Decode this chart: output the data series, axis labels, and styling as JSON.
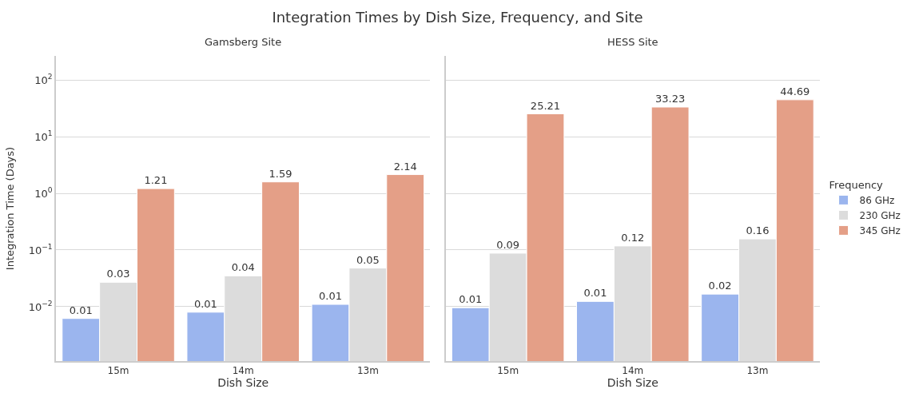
{
  "chart_data": [
    {
      "type": "bar",
      "title": "Integration Times by Dish Size, Frequency, and Site",
      "subtitle": "Gamsberg Site",
      "xlabel": "Dish Size",
      "ylabel": "Integration Time (Days)",
      "categories": [
        "15m",
        "14m",
        "13m"
      ],
      "log": true,
      "grid": "y",
      "legend": "right",
      "legend_title": "Frequency",
      "ylim": [
        0.0011,
        265
      ],
      "yticks": [
        {
          "value": 0.01,
          "label": "10$^{−2}$"
        },
        {
          "value": 0.1,
          "label": "10$^{−1}$"
        },
        {
          "value": 1,
          "label": "10$^{0}$"
        },
        {
          "value": 10,
          "label": "10$^{1}$"
        },
        {
          "value": 100,
          "label": "10$^{2}$"
        }
      ],
      "series": [
        {
          "name": "86 GHz",
          "color": "#9bb5ee",
          "values": [
            0.0062,
            0.008,
            0.011
          ],
          "value_labels": [
            "0.01",
            "0.01",
            "0.01"
          ]
        },
        {
          "name": "230 GHz",
          "color": "#dcdcdc",
          "values": [
            0.027,
            0.035,
            0.048
          ],
          "value_labels": [
            "0.03",
            "0.04",
            "0.05"
          ]
        },
        {
          "name": "345 GHz",
          "color": "#e49f87",
          "values": [
            1.21,
            1.59,
            2.14
          ],
          "value_labels": [
            "1.21",
            "1.59",
            "2.14"
          ]
        }
      ]
    },
    {
      "type": "bar",
      "subtitle": "HESS Site",
      "xlabel": "Dish Size",
      "categories": [
        "15m",
        "14m",
        "13m"
      ],
      "log": true,
      "grid": "y",
      "tick_labels": "x",
      "ylim": [
        0.0011,
        265
      ],
      "yticks": [
        0.01,
        0.1,
        1,
        10,
        100
      ],
      "series": [
        {
          "color": "#9bb5ee",
          "values": [
            0.0096,
            0.0124,
            0.0167
          ],
          "value_labels": [
            "0.01",
            "0.01",
            "0.02"
          ]
        },
        {
          "color": "#dcdcdc",
          "values": [
            0.088,
            0.118,
            0.157
          ],
          "value_labels": [
            "0.09",
            "0.12",
            "0.16"
          ]
        },
        {
          "color": "#e49f87",
          "values": [
            25.21,
            33.23,
            44.69
          ],
          "value_labels": [
            "25.21",
            "33.23",
            "44.69"
          ]
        }
      ]
    }
  ]
}
